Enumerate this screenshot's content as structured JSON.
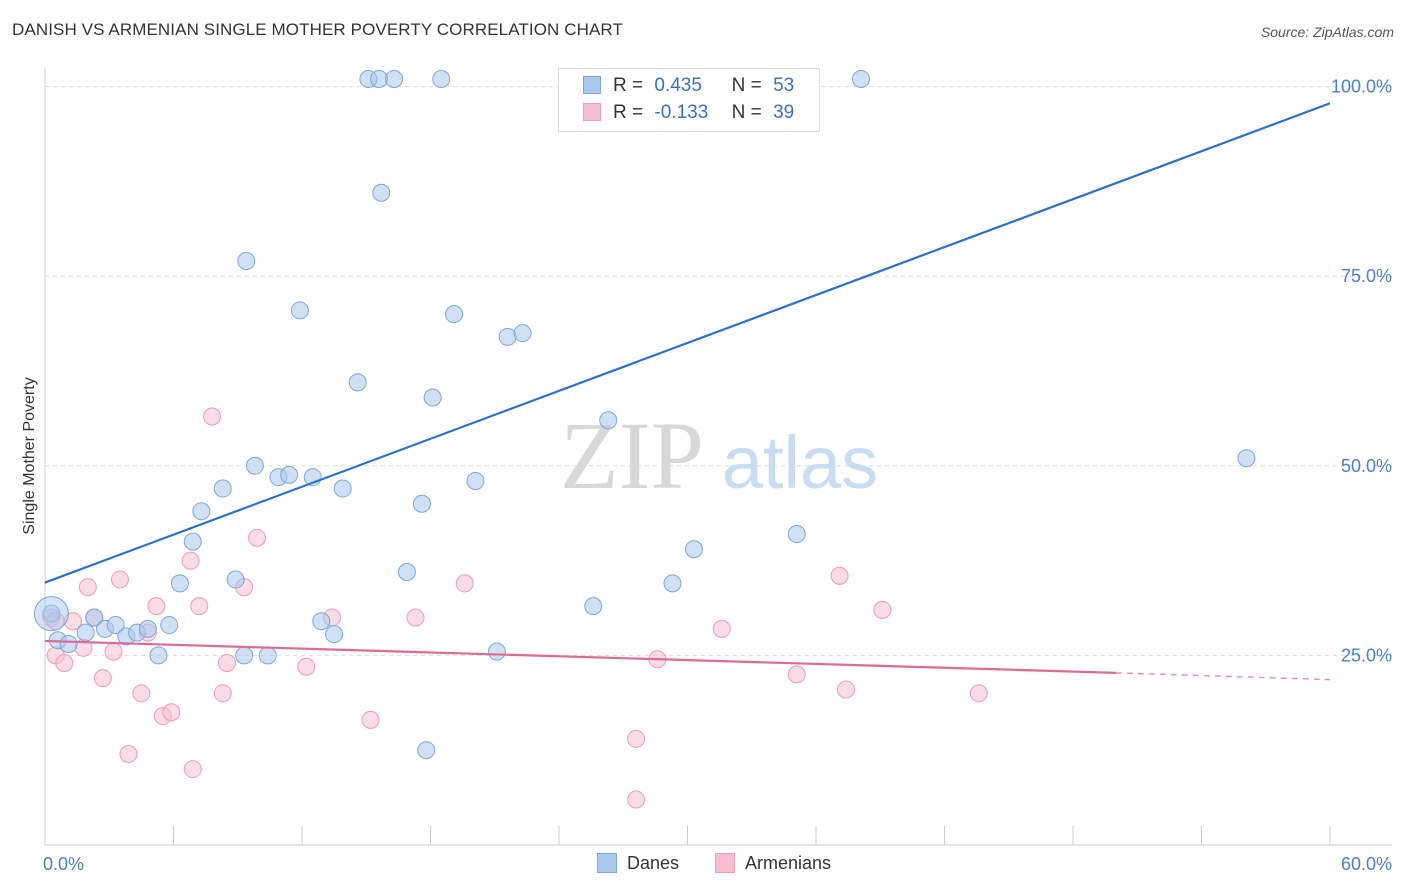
{
  "title": "DANISH VS ARMENIAN SINGLE MOTHER POVERTY CORRELATION CHART",
  "source": "Source: ZipAtlas.com",
  "watermark": {
    "zip": "ZIP",
    "atlas": "atlas"
  },
  "legend": {
    "series": [
      {
        "r_label": "R =",
        "r_value": "0.435",
        "n_label": "N =",
        "n_value": "53"
      },
      {
        "r_label": "R =",
        "r_value": "-0.133",
        "n_label": "N =",
        "n_value": "39"
      }
    ]
  },
  "bottom_legend": {
    "danes": "Danes",
    "armenians": "Armenians"
  },
  "colors": {
    "danes_fill": "#aac8ee",
    "danes_stroke": "#7aa7dc",
    "danes_line": "#2b6fcf",
    "armenians_fill": "#f6bfd0",
    "armenians_stroke": "#ef9bb6",
    "armenians_line": "#e06a93",
    "axis_text": "#4a7fcc",
    "grid": "#dddddd"
  },
  "chart_data": {
    "type": "scatter",
    "ylabel": "Single Mother Poverty",
    "xlim": [
      0,
      60
    ],
    "ylim": [
      0,
      101
    ],
    "x_tick_labels": [
      {
        "value": 0,
        "label": "0.0%"
      },
      {
        "value": 60,
        "label": "60.0%"
      }
    ],
    "y_tick_labels": [
      {
        "value": 25,
        "label": "25.0%"
      },
      {
        "value": 50,
        "label": "50.0%"
      },
      {
        "value": 75,
        "label": "75.0%"
      },
      {
        "value": 100,
        "label": "100.0%"
      }
    ],
    "series": [
      {
        "name": "Danes",
        "points": [
          [
            0.3,
            30.5
          ],
          [
            0.6,
            27.0
          ],
          [
            1.1,
            26.5
          ],
          [
            1.9,
            28.0
          ],
          [
            2.3,
            30.0
          ],
          [
            2.8,
            28.5
          ],
          [
            3.3,
            29.0
          ],
          [
            3.8,
            27.5
          ],
          [
            4.3,
            28.0
          ],
          [
            4.8,
            28.5
          ],
          [
            5.3,
            25.0
          ],
          [
            5.8,
            29.0
          ],
          [
            6.3,
            34.5
          ],
          [
            6.9,
            40.0
          ],
          [
            7.3,
            44.0
          ],
          [
            8.3,
            47.0
          ],
          [
            8.9,
            35.0
          ],
          [
            9.3,
            25.0
          ],
          [
            9.4,
            77.0
          ],
          [
            9.8,
            50.0
          ],
          [
            10.4,
            25.0
          ],
          [
            10.9,
            48.5
          ],
          [
            11.4,
            48.8
          ],
          [
            11.9,
            70.5
          ],
          [
            12.5,
            48.5
          ],
          [
            12.9,
            29.5
          ],
          [
            13.5,
            27.8
          ],
          [
            13.9,
            47.0
          ],
          [
            14.6,
            61.0
          ],
          [
            15.1,
            101.0
          ],
          [
            15.6,
            101.0
          ],
          [
            15.7,
            86.0
          ],
          [
            16.3,
            101.0
          ],
          [
            16.9,
            36.0
          ],
          [
            17.6,
            45.0
          ],
          [
            17.8,
            12.5
          ],
          [
            18.1,
            59.0
          ],
          [
            18.5,
            101.0
          ],
          [
            19.1,
            70.0
          ],
          [
            20.1,
            48.0
          ],
          [
            21.1,
            25.5
          ],
          [
            21.6,
            67.0
          ],
          [
            22.3,
            67.5
          ],
          [
            25.6,
            31.5
          ],
          [
            26.3,
            56.0
          ],
          [
            26.6,
            101.0
          ],
          [
            28.6,
            101.0
          ],
          [
            29.3,
            34.5
          ],
          [
            29.9,
            101.0
          ],
          [
            30.3,
            39.0
          ],
          [
            35.1,
            41.0
          ],
          [
            38.1,
            101.0
          ],
          [
            56.1,
            51.0
          ]
        ]
      },
      {
        "name": "Armenians",
        "points": [
          [
            0.3,
            30.0
          ],
          [
            0.5,
            25.0
          ],
          [
            0.9,
            24.0
          ],
          [
            1.3,
            29.5
          ],
          [
            1.8,
            26.0
          ],
          [
            2.0,
            34.0
          ],
          [
            2.3,
            30.0
          ],
          [
            2.7,
            22.0
          ],
          [
            3.2,
            25.5
          ],
          [
            3.5,
            35.0
          ],
          [
            3.9,
            12.0
          ],
          [
            4.5,
            20.0
          ],
          [
            4.8,
            28.0
          ],
          [
            5.2,
            31.5
          ],
          [
            5.5,
            17.0
          ],
          [
            5.9,
            17.5
          ],
          [
            6.8,
            37.5
          ],
          [
            6.9,
            10.0
          ],
          [
            7.2,
            31.5
          ],
          [
            7.8,
            56.5
          ],
          [
            8.3,
            20.0
          ],
          [
            8.5,
            24.0
          ],
          [
            9.3,
            34.0
          ],
          [
            9.9,
            40.5
          ],
          [
            12.2,
            23.5
          ],
          [
            13.4,
            30.0
          ],
          [
            15.2,
            16.5
          ],
          [
            17.3,
            30.0
          ],
          [
            19.6,
            34.5
          ],
          [
            27.6,
            14.0
          ],
          [
            27.6,
            6.0
          ],
          [
            28.6,
            24.5
          ],
          [
            31.6,
            28.5
          ],
          [
            35.1,
            22.5
          ],
          [
            37.1,
            35.5
          ],
          [
            37.4,
            20.5
          ],
          [
            39.1,
            31.0
          ],
          [
            43.6,
            20.0
          ],
          [
            0.5,
            29.5
          ]
        ]
      }
    ],
    "trend_lines": [
      {
        "series": "Danes",
        "x": [
          0,
          60
        ],
        "y": [
          34.6,
          97.8
        ]
      },
      {
        "series": "Armenians",
        "x": [
          0,
          50
        ],
        "y": [
          26.9,
          22.7
        ],
        "dashed_to": [
          60,
          21.8
        ]
      }
    ]
  }
}
